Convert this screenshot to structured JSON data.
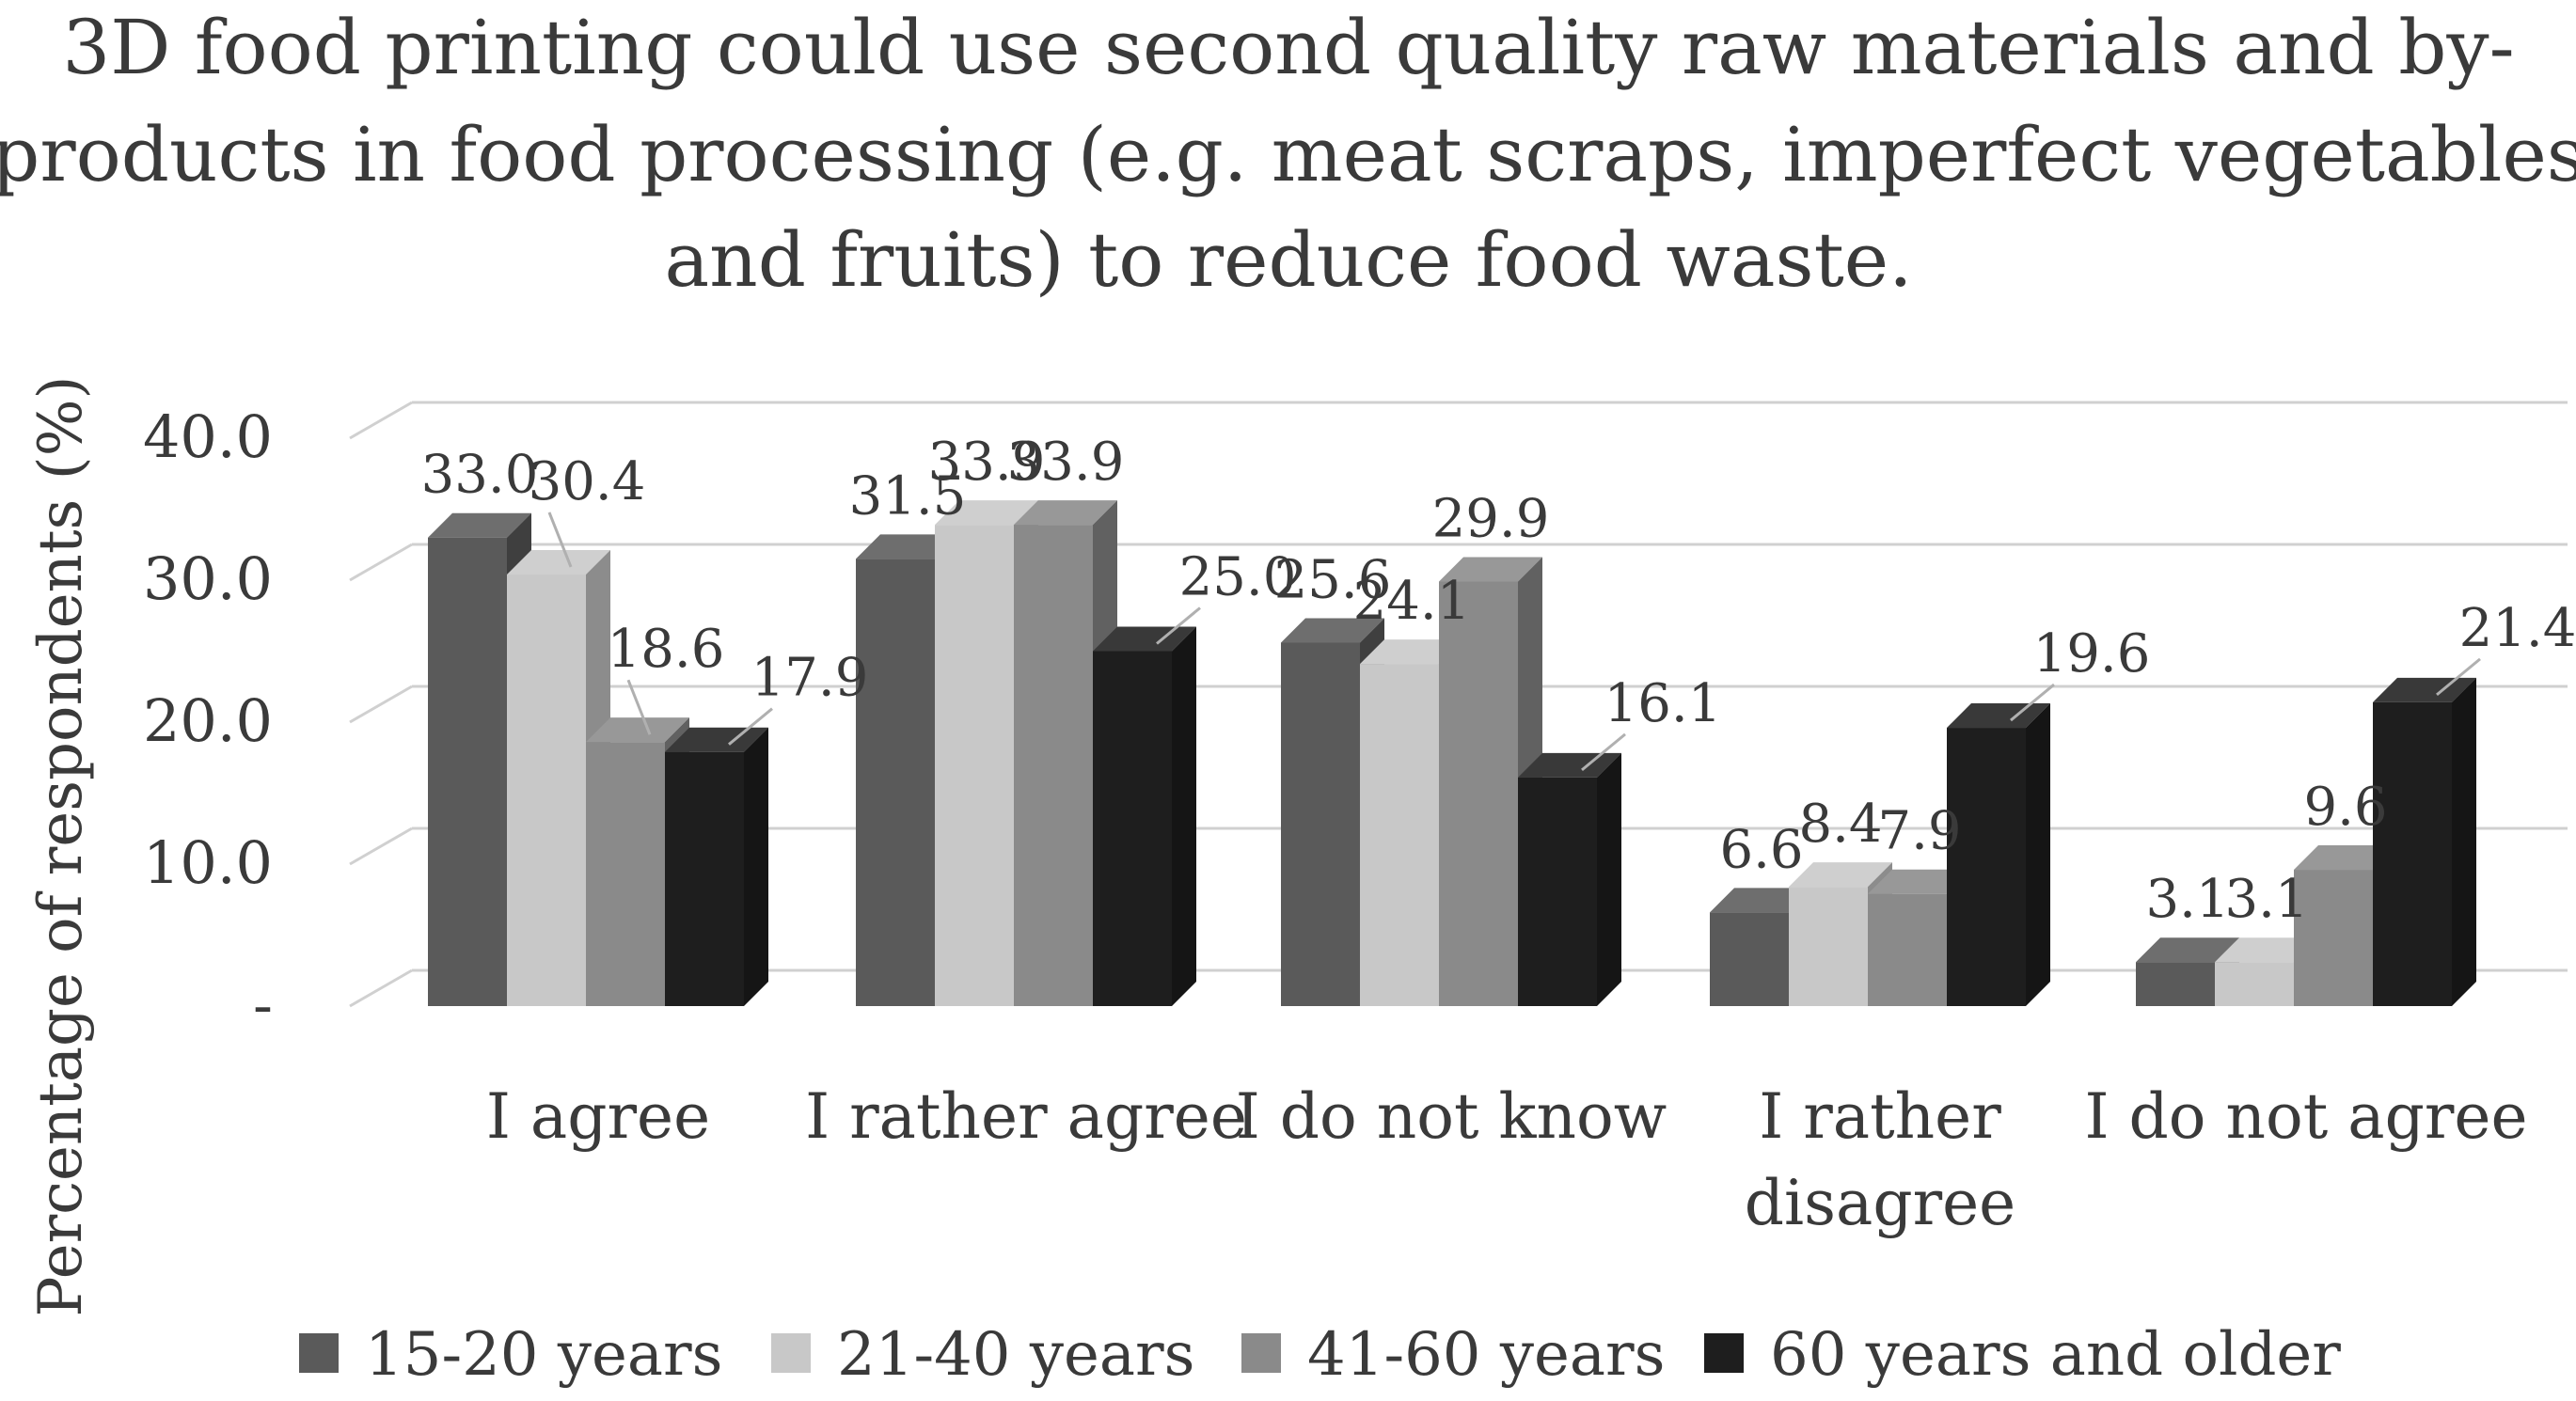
{
  "chart_data": {
    "type": "bar",
    "title": "3D food printing could use second quality raw materials and by-products in food processing (e.g. meat scraps, imperfect vegetables and fruits) to reduce food waste.",
    "title_lines": [
      "3D food printing could use second quality raw materials and by-",
      "products in food processing (e.g. meat scraps, imperfect vegetables",
      "and fruits) to reduce food waste."
    ],
    "xlabel": "",
    "ylabel": "Percentage of respondents (%)",
    "ylim": [
      0,
      40
    ],
    "yticks": [
      0,
      10,
      20,
      30,
      40
    ],
    "ytick_labels": [
      "-",
      "10.0",
      "20.0",
      "30.0",
      "40.0"
    ],
    "grid": true,
    "style": "3d-clustered-column",
    "legend_position": "bottom",
    "categories": [
      "I agree",
      "I rather agree",
      "I do not know",
      "I rather disagree",
      "I do not agree"
    ],
    "category_label_lines": [
      [
        "I agree"
      ],
      [
        "I rather agree"
      ],
      [
        "I do not know"
      ],
      [
        "I rather",
        "disagree"
      ],
      [
        "I do not agree"
      ]
    ],
    "series": [
      {
        "name": "15-20 years",
        "color": "#5a5a5a",
        "values": [
          33.0,
          31.5,
          25.6,
          6.6,
          3.1
        ],
        "labels": [
          "33.0",
          "31.5",
          "25.6",
          "6.6",
          "3.1"
        ]
      },
      {
        "name": "21-40 years",
        "color": "#c8c8c8",
        "values": [
          30.4,
          33.9,
          24.1,
          8.4,
          3.1
        ],
        "labels": [
          "30.4",
          "33.9",
          "24.1",
          "8.4",
          "3.1"
        ]
      },
      {
        "name": "41-60 years",
        "color": "#8a8a8a",
        "values": [
          18.6,
          33.9,
          29.9,
          7.9,
          9.6
        ],
        "labels": [
          "18.6",
          "33.9",
          "29.9",
          "7.9",
          "9.6"
        ]
      },
      {
        "name": "60 years and older",
        "color": "#1e1e1e",
        "values": [
          17.9,
          25.0,
          16.1,
          19.6,
          21.4
        ],
        "labels": [
          "17.9",
          "25.0",
          "16.1",
          "19.6",
          "21.4"
        ]
      }
    ]
  }
}
